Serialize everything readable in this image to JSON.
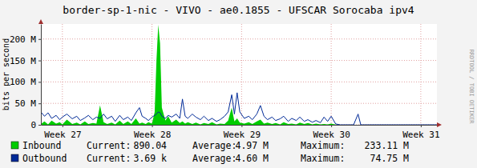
{
  "chart_data": {
    "type": "area",
    "title": "border-sp-1-nic - VIVO - ae0.1855 - UFSCAR Sorocaba ipv4",
    "ylabel": "bits per second",
    "annotations": [
      "RRDTOOL / TOBI OETIKER"
    ],
    "x": [
      26.76,
      26.8,
      26.84,
      26.88,
      26.93,
      26.97,
      27,
      27.05,
      27.11,
      27.16,
      27.2,
      27.25,
      27.29,
      27.34,
      27.38,
      27.42,
      27.46,
      27.5,
      27.55,
      27.59,
      27.64,
      27.68,
      27.73,
      27.77,
      27.82,
      27.86,
      27.89,
      27.93,
      27.96,
      28,
      28.03,
      28.05,
      28.07,
      28.09,
      28.11,
      28.15,
      28.18,
      28.22,
      28.27,
      28.31,
      28.34,
      28.37,
      28.4,
      28.45,
      28.49,
      28.54,
      28.58,
      28.63,
      28.67,
      28.72,
      28.76,
      28.81,
      28.85,
      28.89,
      28.92,
      28.95,
      28.98,
      29.03,
      29.08,
      29.12,
      29.17,
      29.21,
      29.25,
      29.29,
      29.34,
      29.38,
      29.43,
      29.47,
      29.52,
      29.56,
      29.61,
      29.65,
      29.7,
      29.74,
      29.79,
      29.83,
      29.88,
      29.92,
      29.96,
      30,
      30.05,
      30.1,
      30.25,
      30.3,
      30.33,
      31.18
    ],
    "series": [
      {
        "name": "Inbound",
        "type": "area",
        "color": "#00cc00",
        "stats": [
          {
            "label": "Current:",
            "value": "890.04"
          },
          {
            "label": "Average:",
            "value": "4.97 M"
          },
          {
            "label": "Maximum:",
            "value": "233.11 M"
          }
        ],
        "values": [
          2000000,
          8000000,
          1000000,
          10000000,
          3000000,
          6000000,
          1000000,
          12000000,
          2000000,
          5000000,
          1000000,
          8000000,
          2000000,
          4000000,
          3000000,
          45000000,
          6000000,
          2000000,
          5000000,
          1000000,
          10000000,
          2000000,
          8000000,
          2000000,
          15000000,
          3000000,
          5000000,
          2000000,
          6000000,
          3000000,
          30000000,
          150000000,
          233110000,
          190000000,
          40000000,
          10000000,
          20000000,
          5000000,
          12000000,
          4000000,
          8000000,
          3000000,
          6000000,
          2000000,
          5000000,
          1000000,
          4000000,
          2000000,
          6000000,
          1000000,
          3000000,
          2000000,
          10000000,
          40000000,
          8000000,
          15000000,
          5000000,
          3000000,
          6000000,
          2000000,
          8000000,
          12000000,
          3000000,
          5000000,
          2000000,
          4000000,
          1000000,
          6000000,
          2000000,
          3000000,
          1000000,
          5000000,
          2000000,
          4000000,
          1000000,
          3000000,
          1000000,
          2000000,
          1000000,
          3000000,
          500000,
          0,
          0,
          0,
          0,
          0
        ]
      },
      {
        "name": "Outbound",
        "type": "line",
        "color": "#002a97",
        "stats": [
          {
            "label": "Current:",
            "value": "3.69 k"
          },
          {
            "label": "Average:",
            "value": "4.60 M"
          },
          {
            "label": "Maximum:",
            "value": "74.75 M"
          }
        ],
        "values": [
          30000000,
          20000000,
          28000000,
          15000000,
          22000000,
          12000000,
          18000000,
          25000000,
          14000000,
          20000000,
          10000000,
          16000000,
          22000000,
          12000000,
          18000000,
          15000000,
          25000000,
          14000000,
          20000000,
          8000000,
          22000000,
          12000000,
          18000000,
          10000000,
          28000000,
          40000000,
          20000000,
          15000000,
          10000000,
          18000000,
          22000000,
          25000000,
          30000000,
          28000000,
          20000000,
          15000000,
          22000000,
          18000000,
          25000000,
          15000000,
          60000000,
          20000000,
          15000000,
          25000000,
          18000000,
          12000000,
          20000000,
          10000000,
          15000000,
          8000000,
          12000000,
          20000000,
          30000000,
          70000000,
          25000000,
          74750000,
          30000000,
          15000000,
          20000000,
          12000000,
          25000000,
          45000000,
          20000000,
          12000000,
          18000000,
          10000000,
          14000000,
          20000000,
          8000000,
          15000000,
          10000000,
          18000000,
          8000000,
          12000000,
          6000000,
          10000000,
          5000000,
          18000000,
          8000000,
          20000000,
          2000000,
          0,
          0,
          25000000,
          0,
          0
        ]
      }
    ],
    "xlim": [
      26.76,
      31.18
    ],
    "xticks": [
      {
        "value": 27,
        "label": "Week 27"
      },
      {
        "value": 28,
        "label": "Week 28"
      },
      {
        "value": 29,
        "label": "Week 29"
      },
      {
        "value": 30,
        "label": "Week 30"
      },
      {
        "value": 31,
        "label": "Week 31"
      }
    ],
    "ylim": [
      0,
      235000000
    ],
    "yticks": [
      0,
      {
        "value": 50000000,
        "label": "50 M"
      },
      {
        "value": 100000000,
        "label": "100 M"
      },
      {
        "value": 150000000,
        "label": "150 M"
      },
      {
        "value": 200000000,
        "label": "200 M"
      }
    ],
    "grid": true,
    "legend": "bottom"
  }
}
